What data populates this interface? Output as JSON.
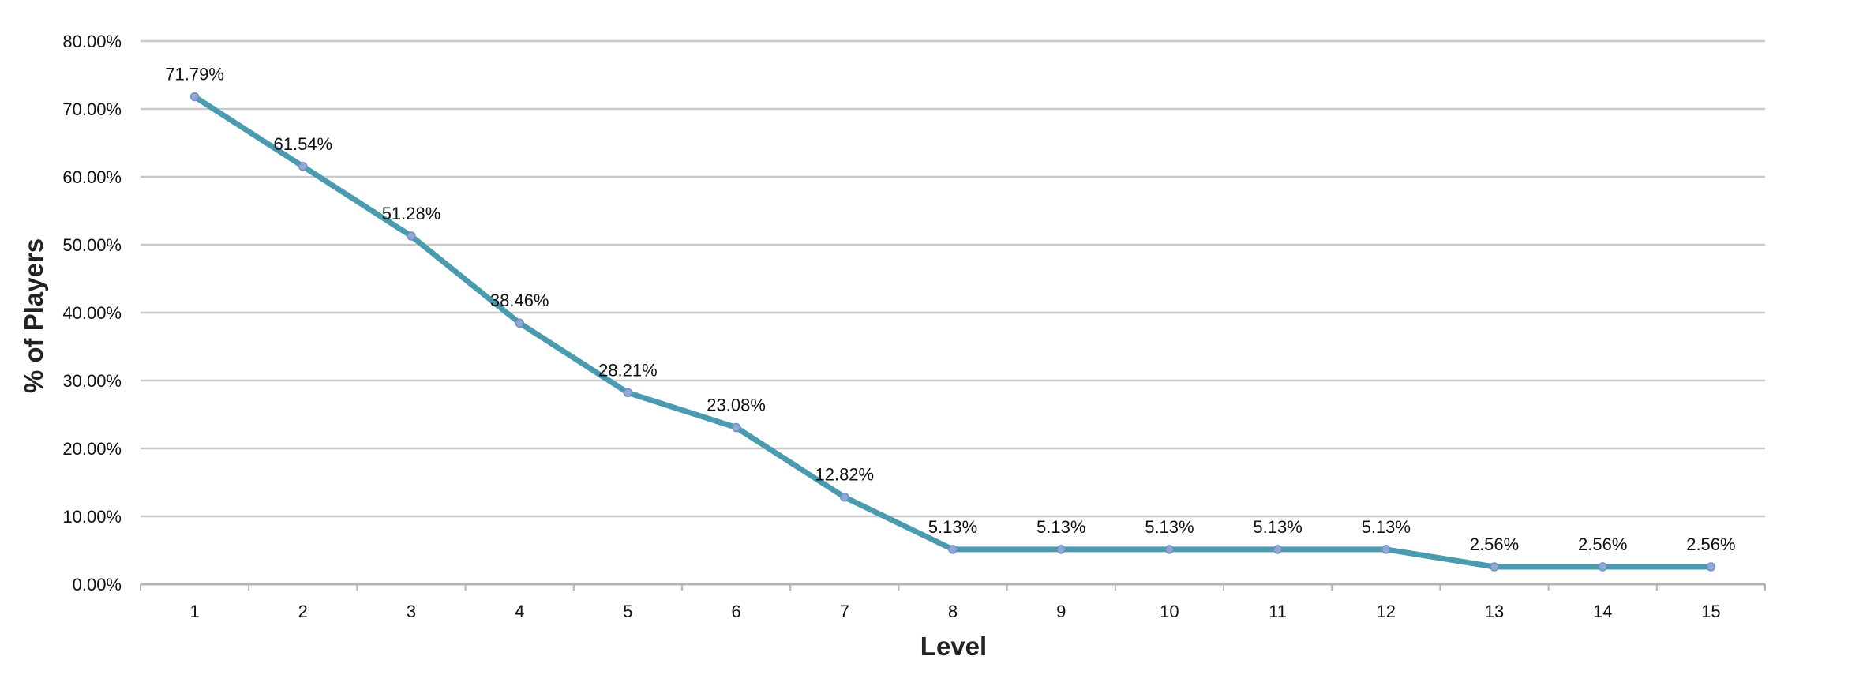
{
  "chart_data": {
    "type": "line",
    "title": "",
    "xlabel": "Level",
    "ylabel": "% of Players",
    "categories": [
      "1",
      "2",
      "3",
      "4",
      "5",
      "6",
      "7",
      "8",
      "9",
      "10",
      "11",
      "12",
      "13",
      "14",
      "15"
    ],
    "series": [
      {
        "values": [
          71.79,
          61.54,
          51.28,
          38.46,
          28.21,
          23.08,
          12.82,
          5.13,
          5.13,
          5.13,
          5.13,
          5.13,
          2.56,
          2.56,
          2.56
        ],
        "labels": [
          "71.79%",
          "61.54%",
          "51.28%",
          "38.46%",
          "28.21%",
          "23.08%",
          "12.82%",
          "5.13%",
          "5.13%",
          "5.13%",
          "5.13%",
          "5.13%",
          "2.56%",
          "2.56%",
          "2.56%"
        ],
        "color": "#4a9bb0",
        "marker_color": "#8fa8d6"
      }
    ],
    "ylim": [
      0,
      80
    ],
    "yticks": [
      "0.00%",
      "10.00%",
      "20.00%",
      "30.00%",
      "40.00%",
      "50.00%",
      "60.00%",
      "70.00%",
      "80.00%"
    ],
    "grid": true,
    "legend": "none"
  }
}
